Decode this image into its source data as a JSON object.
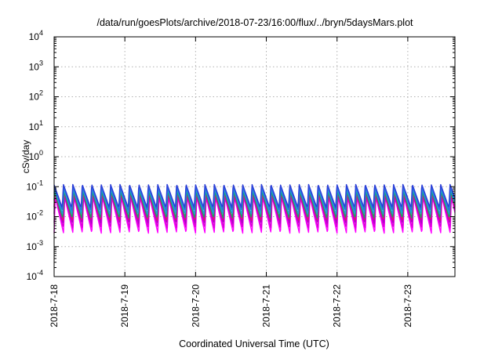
{
  "chart_data": {
    "type": "line",
    "title": "/data/run/goesPlots/archive/2018-07-23/16:00/flux/../bryn/5daysMars.plot",
    "xlabel": "Coordinated Universal Time (UTC)",
    "ylabel": "cSv/day",
    "y_scale": "log",
    "ylim": [
      0.0001,
      10000
    ],
    "y_ticks": [
      {
        "exp": "-4",
        "value": 0.0001
      },
      {
        "exp": "-3",
        "value": 0.001
      },
      {
        "exp": "-2",
        "value": 0.01
      },
      {
        "exp": "-1",
        "value": 0.1
      },
      {
        "exp": "0",
        "value": 1
      },
      {
        "exp": "1",
        "value": 10
      },
      {
        "exp": "2",
        "value": 100
      },
      {
        "exp": "3",
        "value": 1000
      },
      {
        "exp": "4",
        "value": 10000
      }
    ],
    "y_tick_base": "10",
    "x_range": [
      "2018-07-18T00:00",
      "2018-07-23T16:00"
    ],
    "x_ticks": [
      "2018-7-18",
      "2018-7-19",
      "2018-7-20",
      "2018-7-21",
      "2018-7-22",
      "2018-7-23"
    ],
    "grid": true,
    "oscillation_period_hours": 3.2,
    "series": [
      {
        "color": "#ff00ff",
        "peak": 0.045,
        "trough": 0.0028
      },
      {
        "color": "#d800d8",
        "peak": 0.05,
        "trough": 0.0042
      },
      {
        "color": "#b000c8",
        "peak": 0.055,
        "trough": 0.006
      },
      {
        "color": "#e0186c",
        "peak": 0.06,
        "trough": 0.0075
      },
      {
        "color": "#1a9f6a",
        "peak": 0.07,
        "trough": 0.009
      },
      {
        "color": "#1e9ed2",
        "peak": 0.085,
        "trough": 0.012
      },
      {
        "color": "#2b6fe0",
        "peak": 0.1,
        "trough": 0.016
      },
      {
        "color": "#2c3fd8",
        "peak": 0.12,
        "trough": 0.02
      }
    ]
  }
}
